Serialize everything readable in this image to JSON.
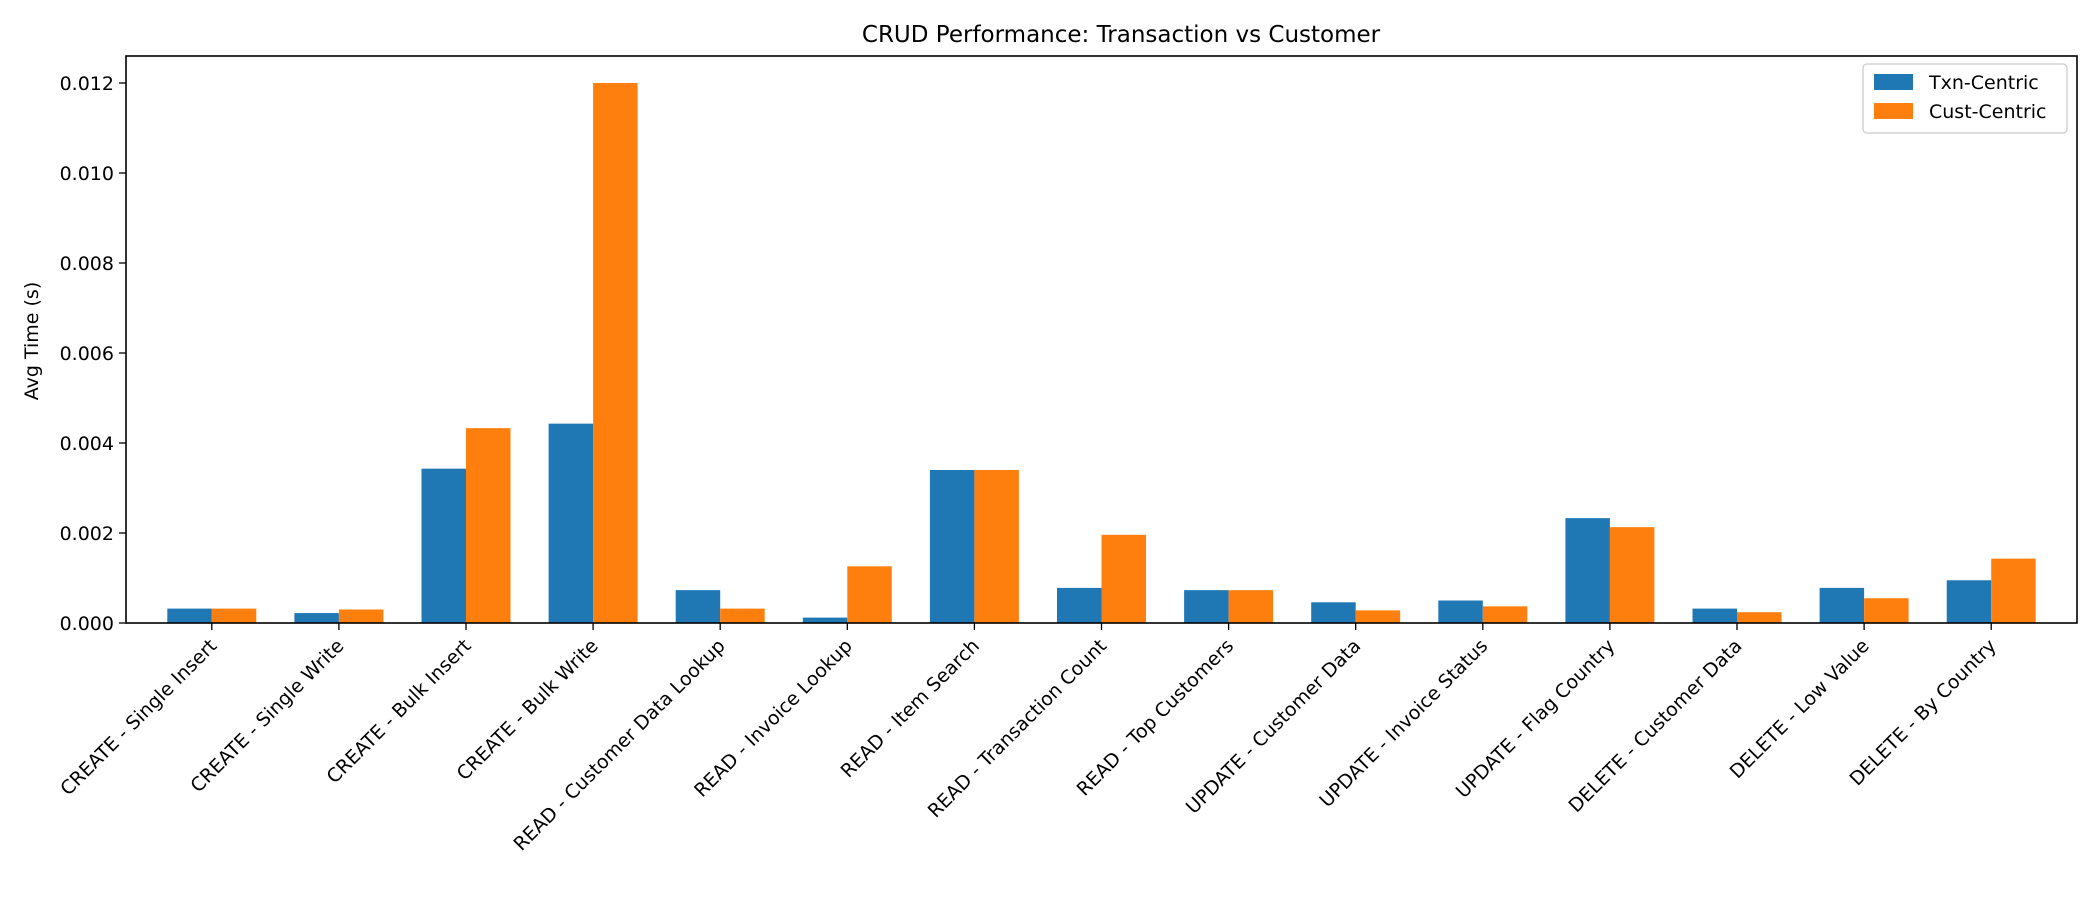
{
  "chart_data": {
    "type": "bar",
    "title": "CRUD Performance: Transaction vs Customer",
    "xlabel": "",
    "ylabel": "Avg Time (s)",
    "ylim": [
      0,
      0.0126
    ],
    "yticks": [
      "0.000",
      "0.002",
      "0.004",
      "0.006",
      "0.008",
      "0.010",
      "0.012"
    ],
    "categories": [
      "CREATE - Single Insert",
      "CREATE - Single Write",
      "CREATE - Bulk Insert",
      "CREATE - Bulk Write",
      "READ - Customer Data Lookup",
      "READ - Invoice Lookup",
      "READ - Item Search",
      "READ - Transaction Count",
      "READ - Top Customers",
      "UPDATE - Customer Data",
      "UPDATE - Invoice Status",
      "UPDATE - Flag Country",
      "DELETE - Customer Data",
      "DELETE - Low Value",
      "DELETE - By Country"
    ],
    "series": [
      {
        "name": "Txn-Centric",
        "color": "#1f77b4",
        "values": [
          0.00032,
          0.00022,
          0.00343,
          0.00443,
          0.00073,
          0.00012,
          0.0034,
          0.00078,
          0.00073,
          0.00046,
          0.0005,
          0.00233,
          0.00032,
          0.00078,
          0.00095
        ]
      },
      {
        "name": "Cust-Centric",
        "color": "#ff7f0e",
        "values": [
          0.00032,
          0.0003,
          0.00433,
          0.012,
          0.00032,
          0.00126,
          0.0034,
          0.00196,
          0.00073,
          0.00028,
          0.00037,
          0.00213,
          0.00024,
          0.00055,
          0.00143
        ]
      }
    ],
    "legend_position": "top-right",
    "grid": false
  }
}
